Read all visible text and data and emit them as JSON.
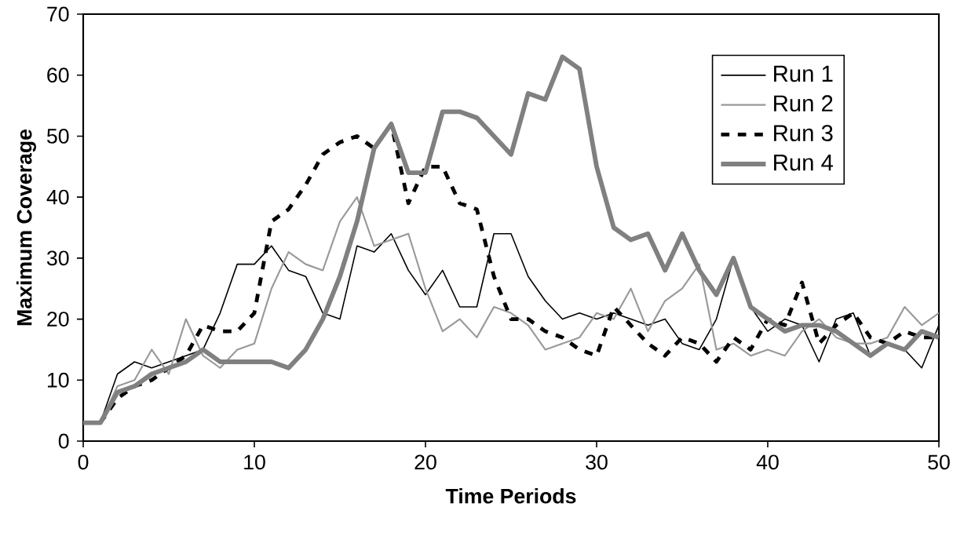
{
  "chart_data": {
    "type": "line",
    "xlabel": "Time Periods",
    "ylabel": "Maximum Coverage",
    "x": [
      0,
      1,
      2,
      3,
      4,
      5,
      6,
      7,
      8,
      9,
      10,
      11,
      12,
      13,
      14,
      15,
      16,
      17,
      18,
      19,
      20,
      21,
      22,
      23,
      24,
      25,
      26,
      27,
      28,
      29,
      30,
      31,
      32,
      33,
      34,
      35,
      36,
      37,
      38,
      39,
      40,
      41,
      42,
      43,
      44,
      45,
      46,
      47,
      48,
      49,
      50
    ],
    "series": [
      {
        "name": "Run 1",
        "color": "#000000",
        "line_style": "solid",
        "values": [
          3,
          3,
          11,
          13,
          12,
          13,
          14,
          15,
          21,
          29,
          29,
          32,
          28,
          27,
          21,
          20,
          32,
          31,
          34,
          28,
          24,
          28,
          22,
          22,
          34,
          34,
          27,
          23,
          20,
          21,
          20,
          21,
          20,
          19,
          20,
          16,
          15,
          20,
          30,
          22,
          18,
          20,
          19,
          13,
          20,
          21,
          14,
          16,
          15,
          12,
          19
        ]
      },
      {
        "name": "Run 2",
        "color": "#999999",
        "line_style": "solid",
        "values": [
          3,
          3,
          9,
          10,
          15,
          11,
          20,
          14,
          12,
          15,
          16,
          25,
          31,
          29,
          28,
          36,
          40,
          32,
          33,
          34,
          25,
          18,
          20,
          17,
          22,
          21,
          19,
          15,
          16,
          17,
          21,
          20,
          25,
          18,
          23,
          25,
          29,
          15,
          16,
          14,
          15,
          14,
          18,
          20,
          17,
          16,
          16,
          17,
          22,
          19,
          21
        ]
      },
      {
        "name": "Run 3",
        "color": "#000000",
        "line_style": "dashed",
        "values": [
          3,
          3,
          7,
          9,
          10,
          12,
          14,
          19,
          18,
          18,
          21,
          36,
          38,
          42,
          47,
          49,
          50,
          48,
          52,
          39,
          45,
          45,
          39,
          38,
          27,
          20,
          20,
          18,
          17,
          15,
          14,
          22,
          19,
          16,
          14,
          17,
          16,
          13,
          17,
          15,
          20,
          19,
          26,
          16,
          19,
          21,
          17,
          16,
          18,
          17,
          17
        ]
      },
      {
        "name": "Run 4",
        "color": "#808080",
        "line_style": "solid",
        "values": [
          3,
          3,
          8,
          9,
          11,
          12,
          13,
          15,
          13,
          13,
          13,
          13,
          12,
          15,
          20,
          27,
          36,
          48,
          52,
          44,
          44,
          54,
          54,
          53,
          50,
          47,
          57,
          56,
          63,
          61,
          45,
          35,
          33,
          34,
          28,
          34,
          28,
          24,
          30,
          22,
          20,
          18,
          19,
          19,
          18,
          16,
          14,
          16,
          15,
          18,
          17
        ]
      }
    ],
    "xlim": [
      0,
      50
    ],
    "ylim": [
      0,
      70
    ],
    "xticks": [
      0,
      10,
      20,
      30,
      40,
      50
    ],
    "yticks": [
      0,
      10,
      20,
      30,
      40,
      50,
      60,
      70
    ],
    "grid": false,
    "legend": "top right",
    "marker": "none"
  }
}
